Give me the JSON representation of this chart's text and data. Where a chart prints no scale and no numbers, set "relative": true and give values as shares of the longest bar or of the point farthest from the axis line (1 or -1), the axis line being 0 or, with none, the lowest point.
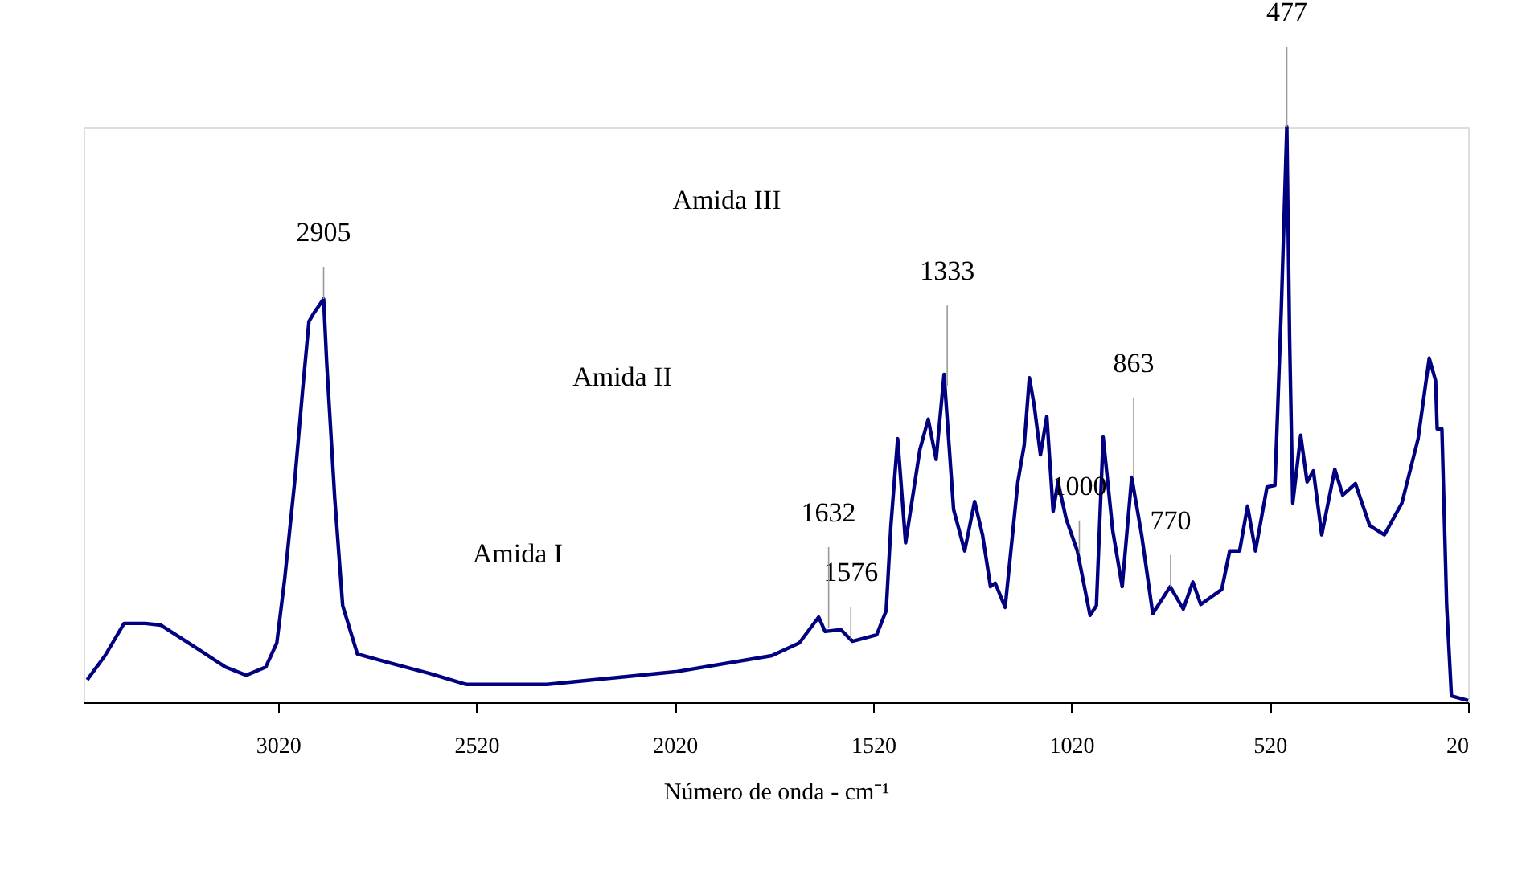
{
  "chart_data": {
    "type": "line",
    "relative": true,
    "xlabel": "Número de onda - cm⁻¹",
    "xlim": [
      3510,
      20
    ],
    "xticks": [
      3020,
      2520,
      2020,
      1520,
      1020,
      520,
      20
    ],
    "grid": false,
    "marker": "none",
    "line_style": "solid",
    "series": [
      {
        "color": "#000080",
        "x": [
          3501,
          3456,
          3408,
          3355,
          3315,
          3234,
          3152,
          3100,
          3051,
          3023,
          3003,
          2978,
          2958,
          2942,
          2930,
          2905,
          2897,
          2877,
          2857,
          2820,
          2747,
          2638,
          2545,
          2342,
          2018,
          1775,
          1706,
          1657,
          1641,
          1601,
          1572,
          1511,
          1487,
          1475,
          1458,
          1438,
          1402,
          1381,
          1361,
          1341,
          1317,
          1289,
          1264,
          1244,
          1224,
          1212,
          1187,
          1155,
          1139,
          1126,
          1114,
          1098,
          1082,
          1066,
          1054,
          1033,
          1005,
          973,
          957,
          940,
          916,
          892,
          868,
          843,
          815,
          771,
          738,
          714,
          694,
          641,
          621,
          596,
          576,
          556,
          527,
          507,
          491,
          477,
          470,
          462,
          442,
          426,
          410,
          389,
          356,
          336,
          304,
          268,
          231,
          187,
          146,
          118,
          102,
          98,
          86,
          74,
          62,
          20
        ],
        "values": [
          0.039,
          0.081,
          0.137,
          0.137,
          0.134,
          0.098,
          0.061,
          0.047,
          0.061,
          0.103,
          0.215,
          0.383,
          0.542,
          0.662,
          0.676,
          0.701,
          0.587,
          0.355,
          0.168,
          0.084,
          0.07,
          0.05,
          0.031,
          0.031,
          0.053,
          0.081,
          0.103,
          0.148,
          0.123,
          0.126,
          0.106,
          0.117,
          0.159,
          0.307,
          0.458,
          0.277,
          0.439,
          0.492,
          0.422,
          0.57,
          0.335,
          0.263,
          0.349,
          0.291,
          0.201,
          0.207,
          0.165,
          0.383,
          0.447,
          0.564,
          0.517,
          0.43,
          0.497,
          0.332,
          0.383,
          0.318,
          0.263,
          0.151,
          0.168,
          0.461,
          0.299,
          0.201,
          0.391,
          0.291,
          0.154,
          0.201,
          0.162,
          0.209,
          0.17,
          0.196,
          0.263,
          0.263,
          0.341,
          0.263,
          0.374,
          0.377,
          0.682,
          1.0,
          0.634,
          0.346,
          0.464,
          0.383,
          0.402,
          0.291,
          0.405,
          0.36,
          0.38,
          0.307,
          0.291,
          0.346,
          0.458,
          0.598,
          0.559,
          0.475,
          0.475,
          0.168,
          0.011,
          0.003
        ]
      }
    ],
    "annotations": [
      {
        "text": "2905",
        "x": 2905,
        "y": 0.701
      },
      {
        "text": "1632",
        "x": 1632,
        "y": 0.13
      },
      {
        "text": "1576",
        "x": 1576,
        "y": 0.11
      },
      {
        "text": "1333",
        "x": 1333,
        "y": 0.55
      },
      {
        "text": "1000",
        "x": 1000,
        "y": 0.26
      },
      {
        "text": "863",
        "x": 863,
        "y": 0.39
      },
      {
        "text": "770",
        "x": 770,
        "y": 0.2
      },
      {
        "text": "477",
        "x": 477,
        "y": 1.0
      },
      "Amida I",
      "Amida II",
      "Amida III"
    ]
  }
}
